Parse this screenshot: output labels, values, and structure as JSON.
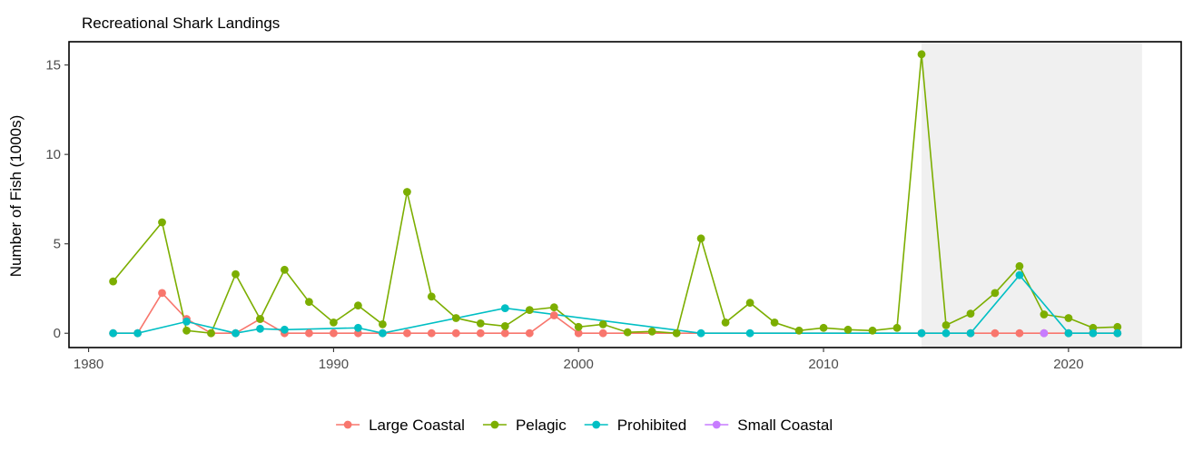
{
  "chart_data": {
    "type": "line",
    "title": "Recreational Shark Landings",
    "xlabel": "",
    "ylabel": "Number of Fish (1000s)",
    "xlim": [
      1979.2,
      2024.6
    ],
    "ylim": [
      -0.8,
      16.3
    ],
    "xticks": [
      1980,
      1990,
      2000,
      2010,
      2020
    ],
    "yticks": [
      0,
      5,
      10,
      15
    ],
    "shaded_region": [
      2014,
      2023
    ],
    "grid": false,
    "legend_position": "bottom",
    "series": [
      {
        "name": "Large Coastal",
        "color": "#F8766D",
        "x": [
          1981,
          1982,
          1983,
          1984,
          1985,
          1986,
          1987,
          1988,
          1989,
          1990,
          1991,
          1992,
          1993,
          1994,
          1995,
          1996,
          1997,
          1998,
          1999,
          2000,
          2001,
          2014,
          2016,
          2017,
          2018,
          2019,
          2020,
          2021,
          2022
        ],
        "values": [
          0,
          0,
          2.25,
          0.8,
          0,
          0,
          0.8,
          0,
          0,
          0,
          0,
          0,
          0,
          0,
          0,
          0,
          0,
          0,
          1.0,
          0,
          0,
          0,
          0,
          0,
          0,
          0,
          0,
          0,
          0
        ]
      },
      {
        "name": "Pelagic",
        "color": "#7CAE00",
        "x": [
          1981,
          1983,
          1984,
          1985,
          1986,
          1987,
          1988,
          1989,
          1990,
          1991,
          1992,
          1993,
          1994,
          1995,
          1996,
          1997,
          1998,
          1999,
          2000,
          2001,
          2002,
          2003,
          2004,
          2005,
          2006,
          2007,
          2008,
          2009,
          2010,
          2011,
          2012,
          2013,
          2014,
          2015,
          2016,
          2017,
          2018,
          2019,
          2020,
          2021,
          2022
        ],
        "values": [
          2.9,
          6.2,
          0.15,
          0,
          3.3,
          0.8,
          3.55,
          1.75,
          0.6,
          1.55,
          0.5,
          7.9,
          2.05,
          0.85,
          0.55,
          0.4,
          1.3,
          1.45,
          0.35,
          0.5,
          0.05,
          0.1,
          0,
          5.3,
          0.6,
          1.7,
          0.6,
          0.15,
          0.3,
          0.2,
          0.15,
          0.3,
          15.6,
          0.45,
          1.1,
          2.25,
          3.75,
          1.05,
          0.85,
          0.3,
          0.35
        ]
      },
      {
        "name": "Prohibited",
        "color": "#00BFC4",
        "x": [
          1981,
          1982,
          1984,
          1986,
          1987,
          1988,
          1991,
          1992,
          1997,
          2005,
          2007,
          2014,
          2015,
          2016,
          2018,
          2020,
          2021,
          2022
        ],
        "values": [
          0,
          0,
          0.65,
          0,
          0.25,
          0.2,
          0.3,
          0,
          1.4,
          0,
          0,
          0,
          0,
          0,
          3.25,
          0,
          0,
          0
        ]
      },
      {
        "name": "Small Coastal",
        "color": "#C77CFF",
        "x": [
          2019
        ],
        "values": [
          0
        ]
      }
    ]
  }
}
